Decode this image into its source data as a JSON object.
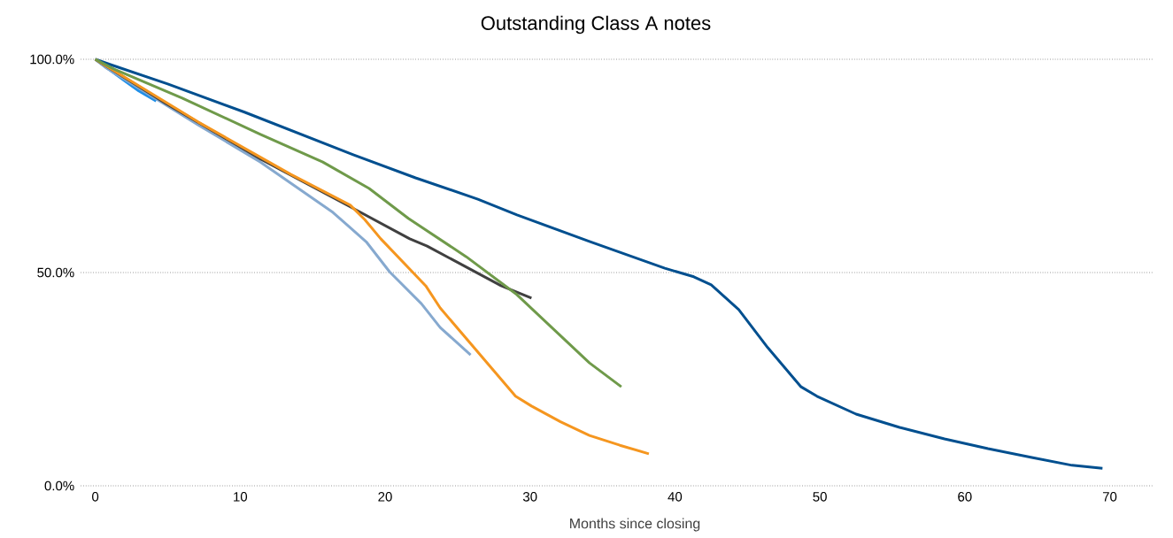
{
  "chart_data": {
    "type": "line",
    "title": "Outstanding Class A notes",
    "xlabel": "Months since closing",
    "xlim": [
      -1,
      73
    ],
    "ylim": [
      0,
      100
    ],
    "xticks": [
      0,
      10,
      20,
      30,
      40,
      50,
      60,
      70
    ],
    "yticks": [
      {
        "value": 0,
        "label": "0.0%"
      },
      {
        "value": 50,
        "label": "50.0%"
      },
      {
        "value": 100,
        "label": "100.0%"
      }
    ],
    "grid": "y",
    "series": [
      {
        "color": "#004f8f",
        "x": [
          0,
          1,
          5,
          10.3,
          17.8,
          22.1,
          26.4,
          29.1,
          34.1,
          39.3,
          41.3,
          42.5,
          44.4,
          46.4,
          48.7,
          49.8,
          52.5,
          55.5,
          58.6,
          61.6,
          64.7,
          67.4,
          69.5
        ],
        "values": [
          100,
          98.8,
          94.2,
          87.6,
          77.6,
          72.2,
          67.2,
          63.5,
          57.3,
          51.0,
          49.0,
          47.1,
          41.3,
          32.4,
          23.2,
          21.0,
          16.8,
          13.7,
          11.0,
          8.7,
          6.6,
          4.8,
          4.1
        ]
      },
      {
        "color": "#1f8fe8",
        "x": [
          0,
          1,
          2,
          3,
          4.2
        ],
        "values": [
          100,
          97.5,
          95,
          92.6,
          90.2
        ]
      },
      {
        "color": "#86a9cf",
        "x": [
          0,
          0.7,
          7.1,
          11.4,
          16.4,
          18.7,
          20.3,
          22.5,
          23.8,
          25.9
        ],
        "values": [
          100,
          98.1,
          84.6,
          75.9,
          64.1,
          57.2,
          50.2,
          42.7,
          37.1,
          30.7
        ]
      },
      {
        "color": "#404040",
        "x": [
          0,
          4.9,
          11.4,
          17.6,
          21.7,
          22.9,
          28.0,
          30.1
        ],
        "values": [
          100,
          89.6,
          76.6,
          65.4,
          57.9,
          56.2,
          46.9,
          44.0
        ]
      },
      {
        "color": "#f5961f",
        "x": [
          0,
          7.1,
          13.5,
          17.6,
          18.6,
          19.7,
          22.8,
          23.8,
          29.0,
          30.1,
          32.1,
          34.1,
          36.2,
          38.2
        ],
        "values": [
          100,
          85.3,
          73.0,
          65.8,
          62.4,
          57.9,
          46.9,
          41.7,
          21.0,
          18.7,
          15.0,
          11.8,
          9.5,
          7.5
        ]
      },
      {
        "color": "#6f9a4a",
        "x": [
          0,
          1.3,
          6,
          11.4,
          15.7,
          18.9,
          21.6,
          25.6,
          29.1,
          31.5,
          34.1,
          36.3
        ],
        "values": [
          100,
          97.7,
          90.9,
          82.4,
          75.9,
          69.7,
          62.7,
          53.7,
          44.8,
          37.1,
          28.8,
          23.2
        ]
      }
    ]
  }
}
